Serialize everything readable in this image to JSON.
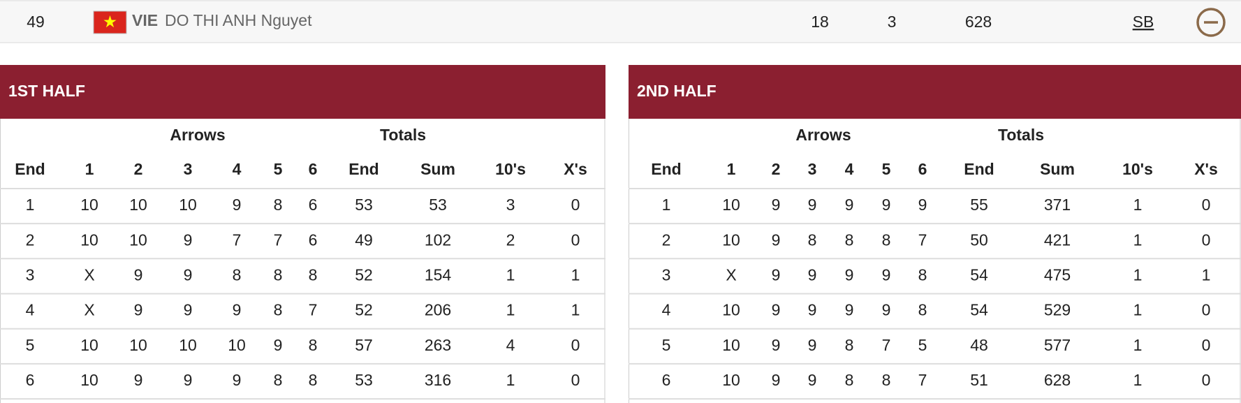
{
  "athlete": {
    "rank": 49,
    "country": "VIE",
    "name": "DO THI ANH Nguyet",
    "tens": 18,
    "xs": 3,
    "score": 628,
    "badge": "SB"
  },
  "halves": [
    {
      "title": "1ST HALF",
      "group_headers": {
        "arrows": "Arrows",
        "totals": "Totals"
      },
      "columns": [
        "End",
        "1",
        "2",
        "3",
        "4",
        "5",
        "6",
        "End",
        "Sum",
        "10's",
        "X's"
      ],
      "rows": [
        [
          1,
          10,
          10,
          10,
          9,
          8,
          6,
          53,
          53,
          3,
          0
        ],
        [
          2,
          10,
          10,
          9,
          7,
          7,
          6,
          49,
          102,
          2,
          0
        ],
        [
          3,
          "X",
          9,
          9,
          8,
          8,
          8,
          52,
          154,
          1,
          1
        ],
        [
          4,
          "X",
          9,
          9,
          9,
          8,
          7,
          52,
          206,
          1,
          1
        ],
        [
          5,
          10,
          10,
          10,
          10,
          9,
          8,
          57,
          263,
          4,
          0
        ],
        [
          6,
          10,
          9,
          9,
          9,
          8,
          8,
          53,
          316,
          1,
          0
        ]
      ]
    },
    {
      "title": "2ND HALF",
      "group_headers": {
        "arrows": "Arrows",
        "totals": "Totals"
      },
      "columns": [
        "End",
        "1",
        "2",
        "3",
        "4",
        "5",
        "6",
        "End",
        "Sum",
        "10's",
        "X's"
      ],
      "rows": [
        [
          1,
          10,
          9,
          9,
          9,
          9,
          9,
          55,
          371,
          1,
          0
        ],
        [
          2,
          10,
          9,
          8,
          8,
          8,
          7,
          50,
          421,
          1,
          0
        ],
        [
          3,
          "X",
          9,
          9,
          9,
          9,
          8,
          54,
          475,
          1,
          1
        ],
        [
          4,
          10,
          9,
          9,
          9,
          9,
          8,
          54,
          529,
          1,
          0
        ],
        [
          5,
          10,
          9,
          9,
          8,
          7,
          5,
          48,
          577,
          1,
          0
        ],
        [
          6,
          10,
          9,
          9,
          8,
          8,
          7,
          51,
          628,
          1,
          0
        ]
      ]
    }
  ]
}
